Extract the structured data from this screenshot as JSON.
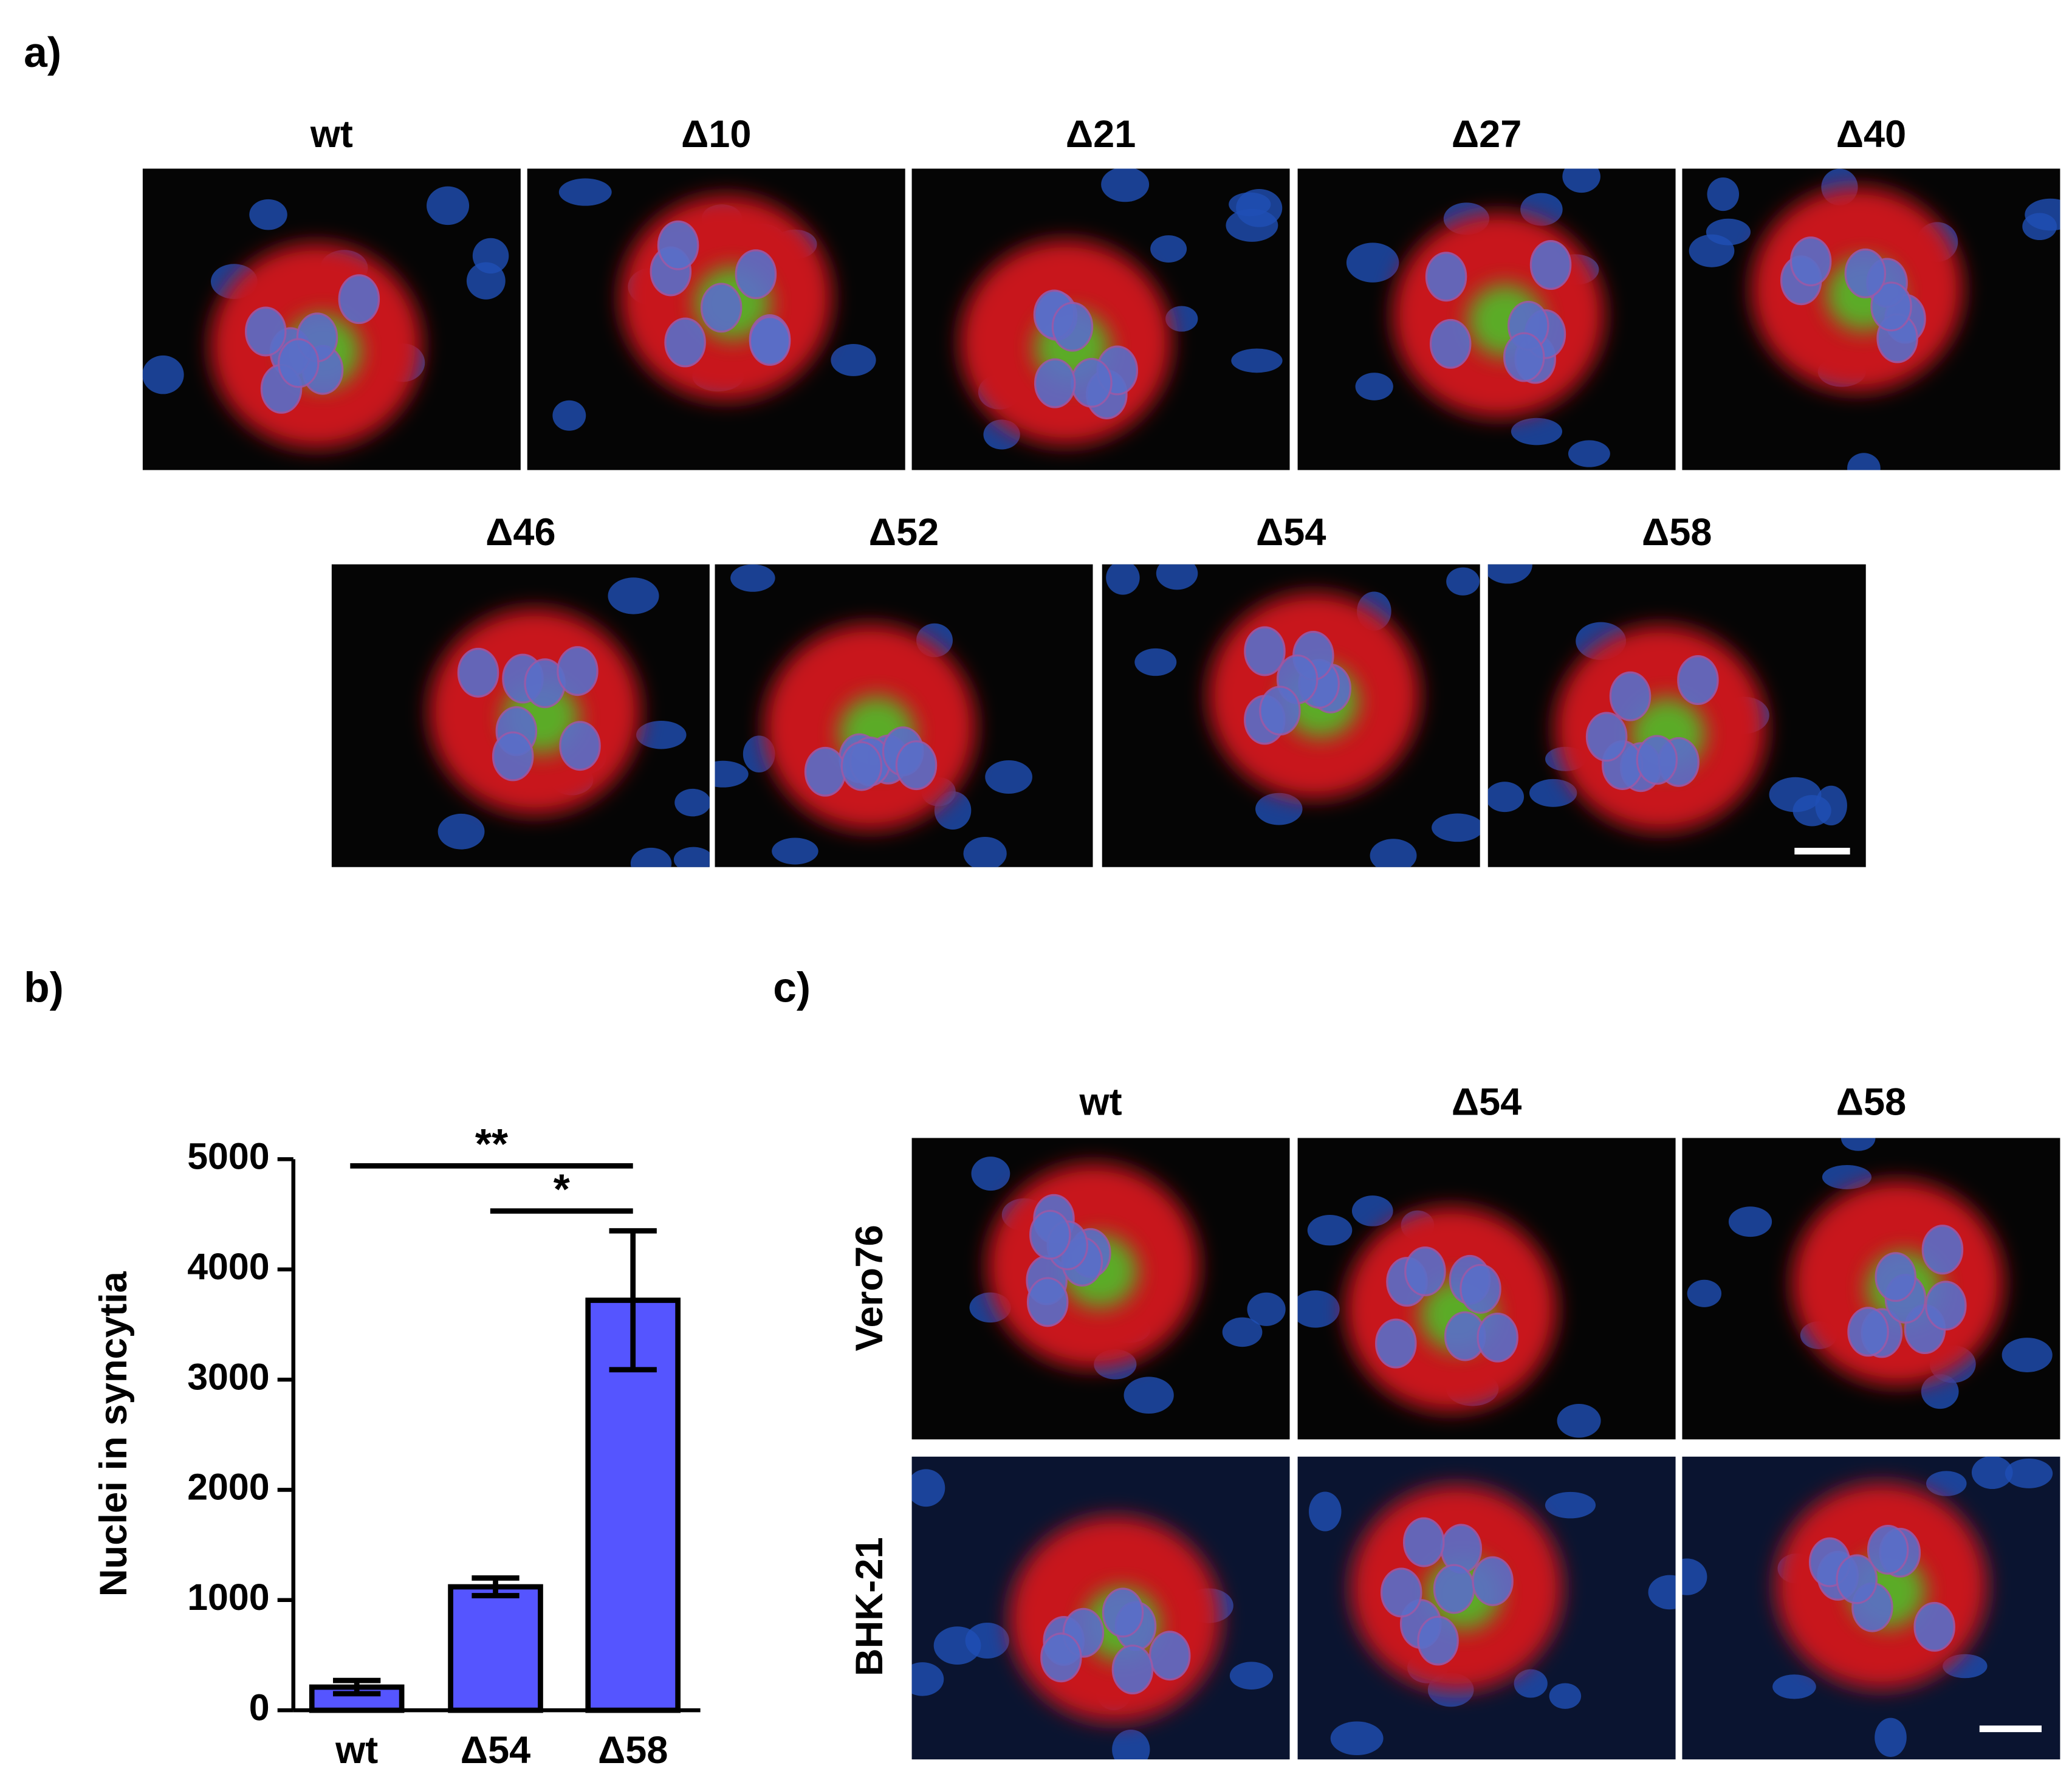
{
  "panel_labels": [
    "a)",
    "b)",
    "c)"
  ],
  "panel_a": {
    "row1": [
      "wt",
      "Δ10",
      "Δ21",
      "Δ27",
      "Δ40"
    ],
    "row2": [
      "Δ46",
      "Δ52",
      "Δ54",
      "Δ58"
    ]
  },
  "panel_c": {
    "columns": [
      "wt",
      "Δ54",
      "Δ58"
    ],
    "rows": [
      "Vero76",
      "BHK-21"
    ]
  },
  "chart_data": {
    "type": "bar",
    "y_label": "Nuclei in syncytia",
    "categories": [
      "wt",
      "Δ54",
      "Δ58"
    ],
    "values": [
      210,
      1120,
      3720
    ],
    "errors": [
      60,
      80,
      630
    ],
    "color": "#5555ff",
    "ylim": [
      0,
      5000
    ],
    "yticks": [
      0,
      1000,
      2000,
      3000,
      4000,
      5000
    ],
    "significance": [
      {
        "from": 0,
        "to": 2,
        "label": "**"
      },
      {
        "from": 1,
        "to": 2,
        "label": "*"
      }
    ]
  }
}
